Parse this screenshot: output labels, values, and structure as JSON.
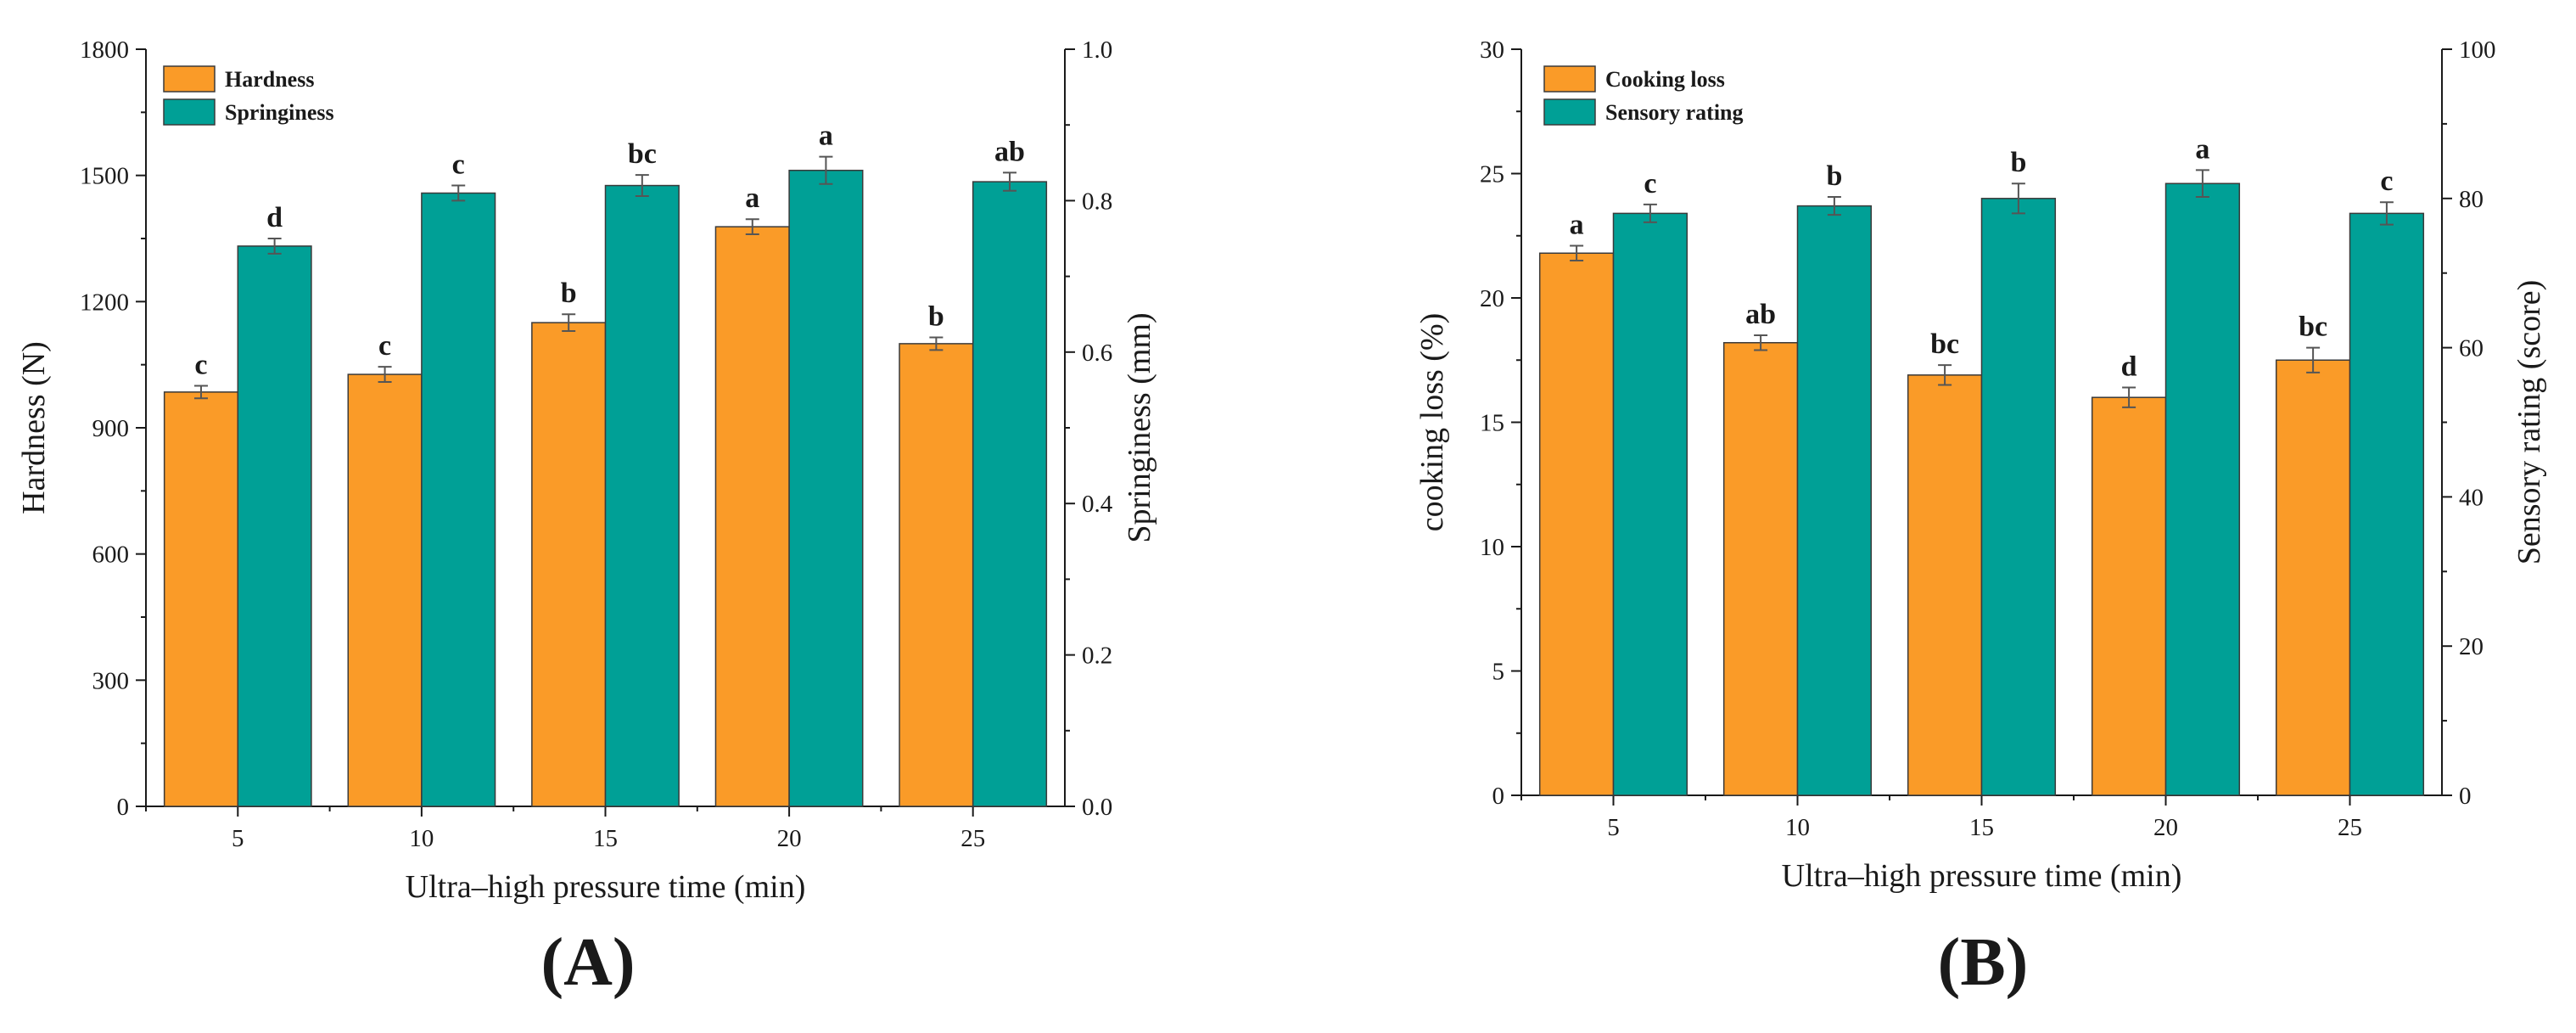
{
  "colors": {
    "series1": "#FA9B28",
    "series2": "#00A096"
  },
  "chart_data": [
    {
      "type": "bar",
      "panel_label": "(A)",
      "xlabel": "Ultra–high pressure time (min)",
      "categories": [
        "5",
        "10",
        "15",
        "20",
        "25"
      ],
      "left_axis": {
        "label": "Hardness (N)",
        "ylim": [
          0,
          1800
        ],
        "ticks": [
          "0",
          "300",
          "600",
          "900",
          "1200",
          "1500",
          "1800"
        ]
      },
      "right_axis": {
        "label": "Springiness (mm)",
        "ylim": [
          0,
          1.0
        ],
        "ticks": [
          "0.0",
          "0.2",
          "0.4",
          "0.6",
          "0.8",
          "1.0"
        ]
      },
      "legend_position": "top-left",
      "series": [
        {
          "name": "Hardness",
          "axis": "left",
          "values": [
            985,
            1027,
            1150,
            1378,
            1100
          ],
          "errors": [
            15,
            18,
            20,
            18,
            15
          ],
          "letters": [
            "c",
            "c",
            "b",
            "a",
            "b"
          ]
        },
        {
          "name": "Springiness",
          "axis": "right",
          "values": [
            0.74,
            0.81,
            0.82,
            0.84,
            0.825
          ],
          "errors": [
            0.01,
            0.01,
            0.014,
            0.018,
            0.012
          ],
          "letters": [
            "d",
            "c",
            "bc",
            "a",
            "ab"
          ]
        }
      ]
    },
    {
      "type": "bar",
      "panel_label": "(B)",
      "xlabel": "Ultra–high pressure time (min)",
      "categories": [
        "5",
        "10",
        "15",
        "20",
        "25"
      ],
      "left_axis": {
        "label": "cooking loss (%)",
        "ylim": [
          0,
          30
        ],
        "ticks": [
          "0",
          "5",
          "10",
          "15",
          "20",
          "25",
          "30"
        ]
      },
      "right_axis": {
        "label": "Sensory rating (score)",
        "ylim": [
          0,
          100
        ],
        "ticks": [
          "0",
          "20",
          "40",
          "60",
          "80",
          "100"
        ]
      },
      "legend_position": "top-left",
      "series": [
        {
          "name": "Cooking loss",
          "axis": "left",
          "values": [
            21.8,
            18.2,
            16.9,
            16.0,
            17.5
          ],
          "errors": [
            0.3,
            0.3,
            0.4,
            0.4,
            0.5
          ],
          "letters": [
            "a",
            "ab",
            "bc",
            "d",
            "bc"
          ]
        },
        {
          "name": "Sensory rating",
          "axis": "right",
          "values": [
            78,
            79,
            80,
            82,
            78
          ],
          "errors": [
            1.2,
            1.2,
            2.0,
            1.8,
            1.5
          ],
          "letters": [
            "c",
            "b",
            "b",
            "a",
            "c"
          ]
        }
      ]
    }
  ]
}
